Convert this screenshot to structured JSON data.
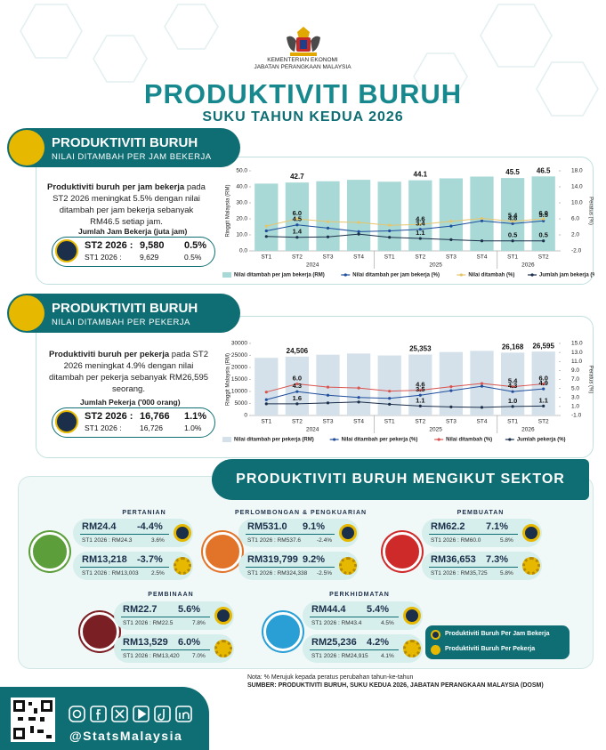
{
  "header": {
    "ministry": "KEMENTERIAN EKONOMI",
    "department": "JABATAN PERANGKAAN MALAYSIA",
    "title": "PRODUKTIVITI BURUH",
    "subtitle": "SUKU TAHUN KEDUA 2026"
  },
  "sections": [
    {
      "title": "PRODUKTIVITI BURUH",
      "subtitle": "NILAI DITAMBAH PER JAM BEKERJA",
      "lead": "Produktiviti buruh per jam bekerja",
      "text": "pada ST2 2026 meningkat 5.5% dengan nilai ditambah per jam bekerja sebanyak RM46.5 setiap jam.",
      "box": {
        "label": "Jumlah Jam Bekerja (juta jam)",
        "rows": [
          [
            "ST2 2026 :",
            "9,580",
            "0.5%"
          ],
          [
            "ST1 2026 :",
            "9,629",
            "0.5%"
          ]
        ]
      }
    },
    {
      "title": "PRODUKTIVITI BURUH",
      "subtitle": "NILAI DITAMBAH PER PEKERJA",
      "lead": "Produktiviti buruh per pekerja",
      "text": "pada ST2 2026 meningkat 4.9% dengan nilai ditambah per pekerja sebanyak RM26,595 seorang.",
      "box": {
        "label": "Jumlah Pekerja ('000 orang)",
        "rows": [
          [
            "ST2 2026 :",
            "16,766",
            "1.1%"
          ],
          [
            "ST1 2026 :",
            "16,726",
            "1.0%"
          ]
        ]
      }
    }
  ],
  "chart_data": [
    {
      "type": "bar",
      "y_label": "Ringgit Malaysia (RM)",
      "y2_label": "Peratus (%)",
      "groups": [
        {
          "name": "2024",
          "categories": [
            "ST1",
            "ST2",
            "ST3",
            "ST4"
          ]
        },
        {
          "name": "2025",
          "categories": [
            "ST1",
            "ST2",
            "ST3",
            "ST4"
          ]
        },
        {
          "name": "2026",
          "categories": [
            "ST1",
            "ST2"
          ]
        }
      ],
      "ylim": [
        0,
        50
      ],
      "yticks": [
        {
          "value": 0,
          "label": "0.0"
        },
        {
          "value": 10,
          "label": "10.0"
        },
        {
          "value": 20,
          "label": "20.0"
        },
        {
          "value": 30,
          "label": "30.0"
        },
        {
          "value": 40,
          "label": "40.0"
        },
        {
          "value": 50,
          "label": "50.0"
        }
      ],
      "y2lim": [
        -2,
        18
      ],
      "y2ticks": [
        {
          "value": -2,
          "label": "-2.0"
        },
        {
          "value": 2,
          "label": "2.0"
        },
        {
          "value": 6,
          "label": "6.0"
        },
        {
          "value": 10,
          "label": "10.0"
        },
        {
          "value": 14,
          "label": "14.0"
        },
        {
          "value": 18,
          "label": "18.0"
        }
      ],
      "series": [
        {
          "name": "Nilai ditambah per jam bekerja (RM)",
          "type": "bar",
          "color": "#a9d9d6",
          "values": [
            42.0,
            42.7,
            43.5,
            44.4,
            43.2,
            44.1,
            45.3,
            46.4,
            45.5,
            46.5
          ],
          "value_labels": [
            null,
            "42.7",
            null,
            null,
            null,
            "44.1",
            null,
            null,
            "45.5",
            "46.5"
          ]
        },
        {
          "name": "Nilai ditambah per jam bekerja (%)",
          "type": "line",
          "axis": "y2",
          "color": "#1f4e9c",
          "values": [
            3.0,
            4.5,
            3.7,
            2.8,
            3.0,
            3.4,
            4.2,
            5.5,
            4.8,
            5.5
          ],
          "value_labels": [
            null,
            "4.5",
            null,
            null,
            null,
            "3.4",
            null,
            null,
            "4.8",
            "5.5"
          ]
        },
        {
          "name": "Nilai ditambah (%)",
          "type": "line",
          "axis": "y2",
          "color": "#e6c46a",
          "values": [
            4.2,
            6.0,
            5.3,
            5.1,
            4.4,
            4.6,
            5.4,
            6.1,
            5.4,
            6.0
          ],
          "value_labels": [
            null,
            "6.0",
            null,
            null,
            null,
            "4.6",
            null,
            null,
            "5.4",
            "6.0"
          ]
        },
        {
          "name": "Jumlah jam bekerja (%)",
          "type": "line",
          "axis": "y2",
          "color": "#1b2f4a",
          "values": [
            1.6,
            1.4,
            1.5,
            2.2,
            1.4,
            1.1,
            0.8,
            0.5,
            0.5,
            0.5
          ],
          "value_labels": [
            null,
            "1.4",
            null,
            null,
            null,
            "1.1",
            null,
            null,
            "0.5",
            "0.5"
          ]
        }
      ]
    },
    {
      "type": "bar",
      "y_label": "Ringgit Malaysia (RM)",
      "y2_label": "Peratus (%)",
      "groups": [
        {
          "name": "2024",
          "categories": [
            "ST1",
            "ST2",
            "ST3",
            "ST4"
          ]
        },
        {
          "name": "2025",
          "categories": [
            "ST1",
            "ST2",
            "ST3",
            "ST4"
          ]
        },
        {
          "name": "2026",
          "categories": [
            "ST1",
            "ST2"
          ]
        }
      ],
      "ylim": [
        0,
        30000
      ],
      "yticks": [
        0,
        5000,
        10000,
        15000,
        20000,
        25000,
        30000
      ],
      "y2lim": [
        -1,
        15
      ],
      "y2ticks": [
        {
          "value": -1,
          "label": "-1.0"
        },
        {
          "value": 1,
          "label": "1.0"
        },
        {
          "value": 3,
          "label": "3.0"
        },
        {
          "value": 5,
          "label": "5.0"
        },
        {
          "value": 7,
          "label": "7.0"
        },
        {
          "value": 9,
          "label": "9.0"
        },
        {
          "value": 11,
          "label": "11.0"
        },
        {
          "value": 13,
          "label": "13.0"
        },
        {
          "value": 15,
          "label": "15.0"
        }
      ],
      "series": [
        {
          "name": "Nilai ditambah per pekerja (RM)",
          "type": "bar",
          "color": "#d5e1ea",
          "values": [
            24000,
            24506,
            25300,
            25800,
            25000,
            25353,
            26400,
            26900,
            26168,
            26595
          ],
          "value_labels": [
            null,
            "24,506",
            null,
            null,
            null,
            "25,353",
            null,
            null,
            "26,168",
            "26,595"
          ]
        },
        {
          "name": "Nilai ditambah per pekerja (%)",
          "type": "line",
          "axis": "y2",
          "color": "#1f4e9c",
          "values": [
            2.5,
            4.3,
            3.5,
            3.0,
            2.8,
            3.5,
            4.5,
            5.5,
            4.3,
            4.9
          ],
          "value_labels": [
            null,
            "4.3",
            null,
            null,
            null,
            "3.5",
            null,
            null,
            "4.3",
            "4.9"
          ]
        },
        {
          "name": "Nilai ditambah (%)",
          "type": "line",
          "axis": "y2",
          "color": "#d9534f",
          "values": [
            4.2,
            6.0,
            5.3,
            5.1,
            4.4,
            4.6,
            5.4,
            6.1,
            5.4,
            6.0
          ],
          "value_labels": [
            null,
            "6.0",
            null,
            null,
            null,
            "4.6",
            null,
            null,
            "5.4",
            "6.0"
          ]
        },
        {
          "name": "Jumlah pekerja (%)",
          "type": "line",
          "axis": "y2",
          "color": "#1b2f4a",
          "values": [
            1.6,
            1.6,
            1.8,
            2.0,
            1.5,
            1.1,
            0.9,
            0.8,
            1.0,
            1.1
          ],
          "value_labels": [
            null,
            "1.6",
            null,
            null,
            null,
            "1.1",
            null,
            null,
            "1.0",
            "1.1"
          ]
        }
      ]
    }
  ],
  "sectors": {
    "title": "PRODUKTIVITI BURUH MENGIKUT SEKTOR",
    "items": [
      {
        "name": "PERTANIAN",
        "per_hour": [
          "RM24.4",
          "-4.4%",
          "ST1 2026 : RM24.3",
          "3.6%"
        ],
        "per_worker": [
          "RM13,218",
          "-3.7%",
          "ST1 2026 : RM13,003",
          "2.5%"
        ]
      },
      {
        "name": "PERLOMBONGAN & PENGKUARIAN",
        "per_hour": [
          "RM531.0",
          "9.1%",
          "ST1 2026 : RM537.6",
          "-2.4%"
        ],
        "per_worker": [
          "RM319,799",
          "9.2%",
          "ST1 2026 : RM324,338",
          "-2.5%"
        ]
      },
      {
        "name": "PEMBUATAN",
        "per_hour": [
          "RM62.2",
          "7.1%",
          "ST1 2026 : RM60.0",
          "5.8%"
        ],
        "per_worker": [
          "RM36,653",
          "7.3%",
          "ST1 2026 : RM35,725",
          "5.8%"
        ]
      },
      {
        "name": "PEMBINAAN",
        "per_hour": [
          "RM22.7",
          "5.6%",
          "ST1 2026 : RM22.5",
          "7.8%"
        ],
        "per_worker": [
          "RM13,529",
          "6.0%",
          "ST1 2026 : RM13,420",
          "7.0%"
        ]
      },
      {
        "name": "PERKHIDMATAN",
        "per_hour": [
          "RM44.4",
          "5.4%",
          "ST1 2026 : RM43.4",
          "4.5%"
        ],
        "per_worker": [
          "RM25,236",
          "4.2%",
          "ST1 2026 : RM24,915",
          "4.1%"
        ]
      }
    ],
    "legend": [
      "Produktiviti Buruh Per Jam Bekerja",
      "Produktiviti Buruh Per Pekerja"
    ]
  },
  "notes": [
    "Nota: % Merujuk kepada peratus perubahan tahun-ke-tahun",
    "SUMBER: PRODUKTIVITI BURUH, SUKU KEDUA 2026, JABATAN PERANGKAAN MALAYSIA (DOSM)"
  ],
  "footer": {
    "handle": "@StatsMalaysia"
  }
}
